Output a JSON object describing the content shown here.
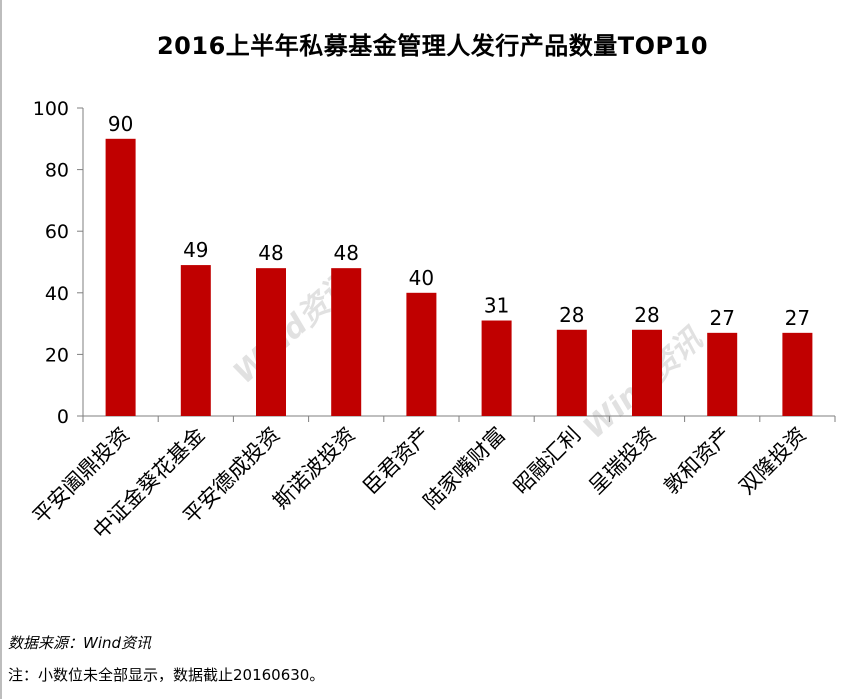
{
  "chart_data": {
    "type": "bar",
    "title": "2016上半年私募基金管理人发行产品数量TOP10",
    "categories": [
      "平安阖鼎投资",
      "中证金葵花基金",
      "平安德成投资",
      "斯诺波投资",
      "臣君资产",
      "陆家嘴财富",
      "昭融汇利",
      "呈瑞投资",
      "敦和资产",
      "双隆投资"
    ],
    "values": [
      90,
      49,
      48,
      48,
      40,
      31,
      28,
      28,
      27,
      27
    ],
    "ylim": [
      0,
      100
    ],
    "yticks": [
      "0",
      "20",
      "40",
      "60",
      "80",
      "100"
    ],
    "bar_color": "#c00000",
    "grid": false,
    "legend": "none"
  },
  "watermark": "Wind资讯",
  "source": "数据来源：Wind资讯",
  "note": "注：小数位未全部显示，数据截止20160630。"
}
